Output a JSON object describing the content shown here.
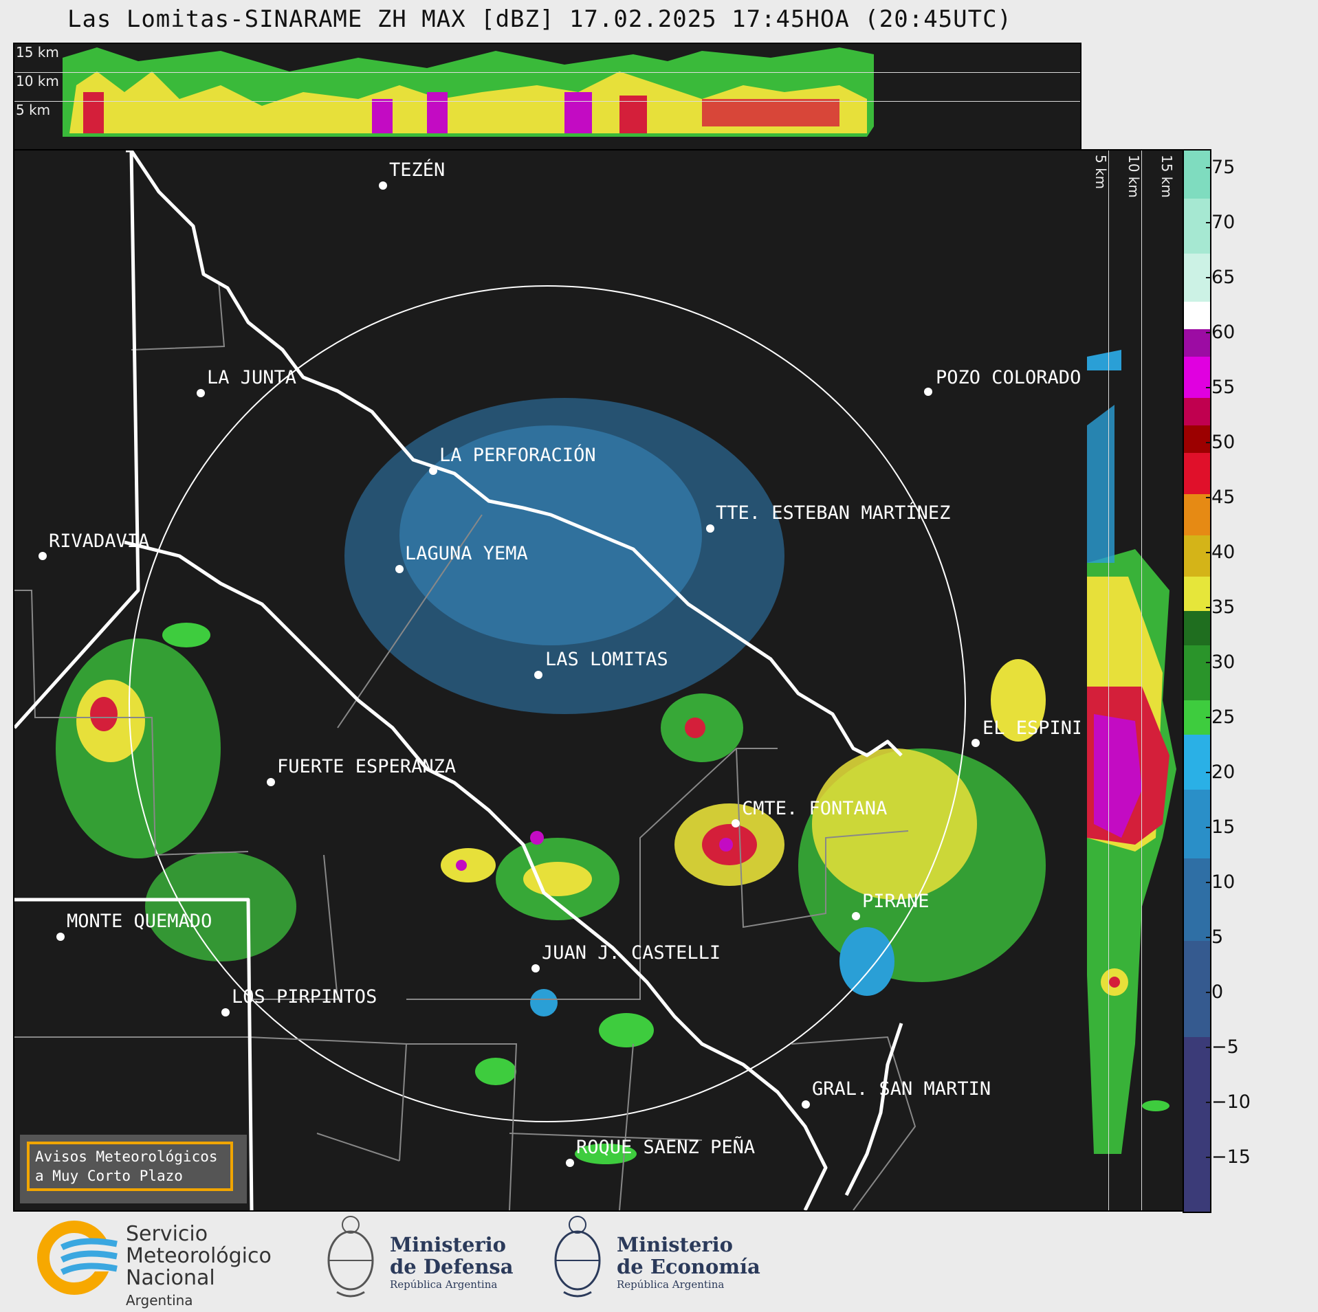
{
  "title": "Las Lomitas-SINARAME ZH MAX [dBZ] 17.02.2025 17:45HOA (20:45UTC)",
  "height_labels": {
    "h15": "15 km",
    "h10": "10 km",
    "h5": "5 km"
  },
  "cities": [
    {
      "name": "TEZÉN"
    },
    {
      "name": "LA JUNTA"
    },
    {
      "name": "POZO COLORADO"
    },
    {
      "name": "LA PERFORACIÓN"
    },
    {
      "name": "TTE. ESTEBAN MARTÍNEZ"
    },
    {
      "name": "RIVADAVIA"
    },
    {
      "name": "LAGUNA YEMA"
    },
    {
      "name": "LAS LOMITAS"
    },
    {
      "name": "EL ESPINILLO"
    },
    {
      "name": "FUERTE ESPERANZA"
    },
    {
      "name": "CMTE. FONTANA"
    },
    {
      "name": "PIRANE"
    },
    {
      "name": "MONTE QUEMADO"
    },
    {
      "name": "JUAN J. CASTELLI"
    },
    {
      "name": "LOS PIRPINTOS"
    },
    {
      "name": "GRAL. SAN MARTIN"
    },
    {
      "name": "ROQUE SAENZ PEÑA"
    }
  ],
  "colorbar": {
    "unit": "dBZ",
    "ticks": [
      "75",
      "70",
      "65",
      "60",
      "55",
      "50",
      "45",
      "40",
      "35",
      "30",
      "25",
      "20",
      "15",
      "10",
      "5",
      "0",
      "−5",
      "−10",
      "−15"
    ]
  },
  "avisos": {
    "line1": "Avisos Meteorológicos",
    "line2": "a Muy Corto Plazo"
  },
  "logos": {
    "smn": {
      "line1": "Servicio",
      "line2": "Meteorológico",
      "line3": "Nacional",
      "line4": "Argentina"
    },
    "defensa": {
      "line1": "Ministerio",
      "line2": "de Defensa",
      "line3": "República Argentina"
    },
    "economia": {
      "line1": "Ministerio",
      "line2": "de Economía",
      "line3": "República Argentina"
    }
  },
  "colors": {
    "background": "#1b1b1b",
    "border_lines": "#ffffff",
    "dept_lines": "#888888",
    "accent": "#f0a500"
  }
}
